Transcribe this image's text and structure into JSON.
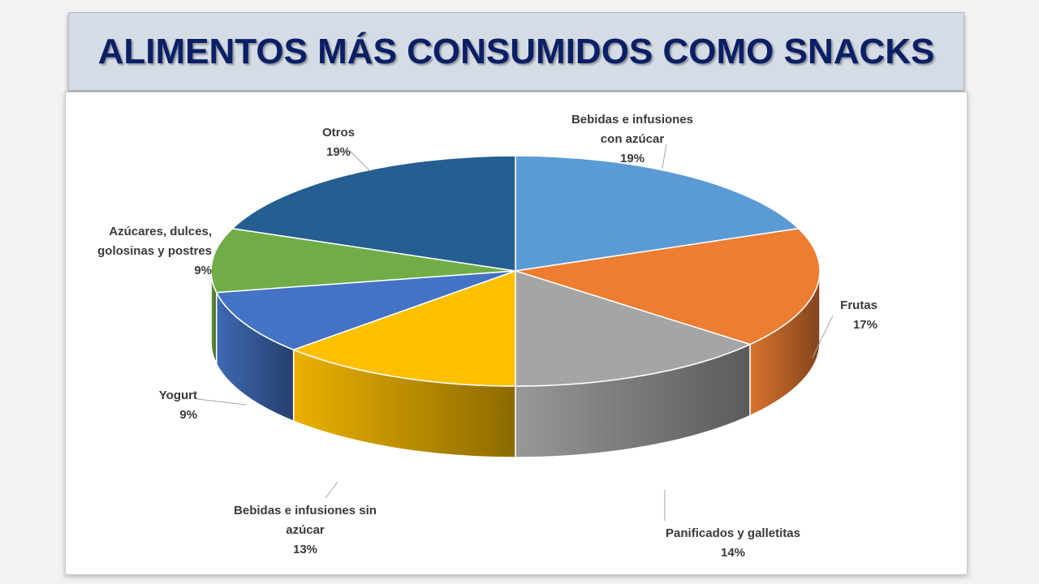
{
  "title": "ALIMENTOS MÁS CONSUMIDOS COMO SNACKS",
  "chart_data": {
    "type": "pie",
    "title": "ALIMENTOS MÁS CONSUMIDOS COMO SNACKS",
    "style": "3d",
    "legend": "none",
    "slices": [
      {
        "label_lines": [
          "Bebidas e infusiones",
          "con azúcar"
        ],
        "value": 19,
        "value_label": "19%",
        "color": "#5b9bd5"
      },
      {
        "label_lines": [
          "Frutas"
        ],
        "value": 17,
        "value_label": "17%",
        "color": "#ed7d31"
      },
      {
        "label_lines": [
          "Panificados y galletitas"
        ],
        "value": 14,
        "value_label": "14%",
        "color": "#a5a5a5"
      },
      {
        "label_lines": [
          "Bebidas e infusiones sin",
          "azúcar"
        ],
        "value": 13,
        "value_label": "13%",
        "color": "#ffc000"
      },
      {
        "label_lines": [
          "Yogurt"
        ],
        "value": 9,
        "value_label": "9%",
        "color": "#4472c4"
      },
      {
        "label_lines": [
          "Azúcares, dulces,",
          "golosinas y postres"
        ],
        "value": 9,
        "value_label": "9%",
        "color": "#70ad47"
      },
      {
        "label_lines": [
          "Otros"
        ],
        "value": 19,
        "value_label": "19%",
        "color": "#255e91"
      }
    ]
  }
}
